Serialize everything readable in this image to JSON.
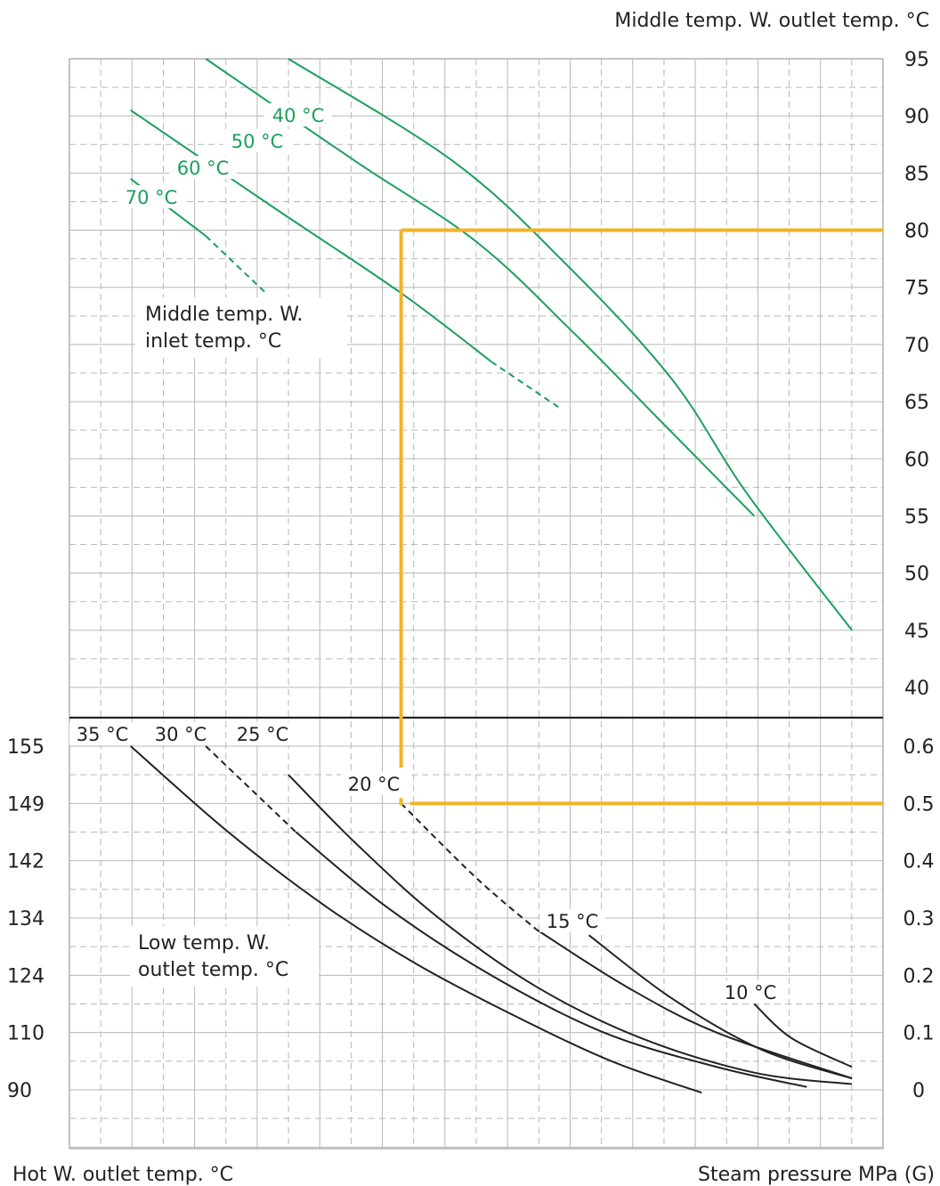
{
  "chart_data": {
    "type": "line",
    "titles": {
      "top_right": "Middle temp. W. outlet temp. °C",
      "bottom_left": "Hot W. outlet temp. °C",
      "bottom_right": "Steam pressure  MPa (G)"
    },
    "top_panel": {
      "right_axis_ticks": [
        "95",
        "90",
        "85",
        "80",
        "75",
        "70",
        "65",
        "60",
        "55",
        "50",
        "45",
        "40"
      ],
      "ylim": [
        37.5,
        95
      ],
      "note_lines": [
        "Middle temp. W.",
        "inlet temp. °C"
      ],
      "series": [
        {
          "name": "40 °C",
          "color": "#1aa05a",
          "points": [
            [
              0.25,
              95
            ],
            [
              0.47,
              86
            ],
            [
              0.62,
              77
            ],
            [
              0.76,
              67
            ],
            [
              0.86,
              57
            ],
            [
              1.0,
              45
            ]
          ]
        },
        {
          "name": "50 °C",
          "color": "#1aa05a",
          "points": [
            [
              0.14,
              95
            ],
            [
              0.34,
              86
            ],
            [
              0.5,
              79
            ],
            [
              0.63,
              71
            ],
            [
              0.75,
              63
            ],
            [
              0.87,
              55
            ]
          ]
        },
        {
          "name": "60 °C",
          "color": "#1aa05a",
          "points": [
            [
              0.04,
              90.5
            ],
            [
              0.23,
              82
            ],
            [
              0.4,
              74.5
            ],
            [
              0.52,
              68.5
            ],
            [
              0.61,
              64.5
            ]
          ],
          "dashed_from_index": 3
        },
        {
          "name": "70 °C",
          "color": "#1aa05a",
          "points": [
            [
              0.04,
              84.5
            ],
            [
              0.14,
              79.5
            ],
            [
              0.22,
              74.5
            ]
          ],
          "dashed_from_index": 1
        }
      ],
      "example_line": {
        "color": "#f2b326",
        "x_start": 0.4,
        "y_level": 80
      }
    },
    "bottom_panel": {
      "left_axis_ticks": [
        "155",
        "149",
        "142",
        "134",
        "124",
        "110",
        "90"
      ],
      "right_axis_ticks": [
        "0.6",
        "0.5",
        "0.4",
        "0.3",
        "0.2",
        "0.1",
        "0"
      ],
      "ylim": [
        -0.05,
        0.6
      ],
      "note_lines": [
        "Low temp. W.",
        "outlet temp. °C"
      ],
      "series": [
        {
          "name": "35 °C",
          "color": "#222222",
          "points": [
            [
              0.04,
              0.6
            ],
            [
              0.17,
              0.45
            ],
            [
              0.3,
              0.32
            ],
            [
              0.42,
              0.22
            ],
            [
              0.55,
              0.13
            ],
            [
              0.68,
              0.05
            ],
            [
              0.8,
              -0.005
            ]
          ]
        },
        {
          "name": "30 °C",
          "color": "#222222",
          "points": [
            [
              0.14,
              0.6
            ],
            [
              0.26,
              0.45
            ],
            [
              0.38,
              0.32
            ],
            [
              0.52,
              0.2
            ],
            [
              0.67,
              0.1
            ],
            [
              0.82,
              0.04
            ],
            [
              0.94,
              0.005
            ]
          ],
          "dashed_until_index": 1
        },
        {
          "name": "25 °C",
          "color": "#222222",
          "points": [
            [
              0.25,
              0.55
            ],
            [
              0.34,
              0.43
            ],
            [
              0.45,
              0.3
            ],
            [
              0.58,
              0.18
            ],
            [
              0.72,
              0.09
            ],
            [
              0.87,
              0.03
            ],
            [
              1.0,
              0.01
            ]
          ]
        },
        {
          "name": "20 °C",
          "color": "#222222",
          "points": [
            [
              0.4,
              0.5
            ],
            [
              0.5,
              0.37
            ],
            [
              0.58,
              0.28
            ],
            [
              0.7,
              0.18
            ],
            [
              0.82,
              0.1
            ],
            [
              1.0,
              0.02
            ]
          ],
          "dashed_until_index": 2
        },
        {
          "name": "15 °C",
          "color": "#222222",
          "points": [
            [
              0.65,
              0.27
            ],
            [
              0.76,
              0.16
            ],
            [
              0.88,
              0.07
            ],
            [
              1.0,
              0.02
            ]
          ]
        },
        {
          "name": "10 °C",
          "color": "#222222",
          "points": [
            [
              0.87,
              0.15
            ],
            [
              0.92,
              0.09
            ],
            [
              1.0,
              0.04
            ]
          ]
        }
      ],
      "example_line": {
        "color": "#f2b326",
        "x_start": 0.4,
        "y_level": 0.5
      }
    },
    "grid": true
  }
}
